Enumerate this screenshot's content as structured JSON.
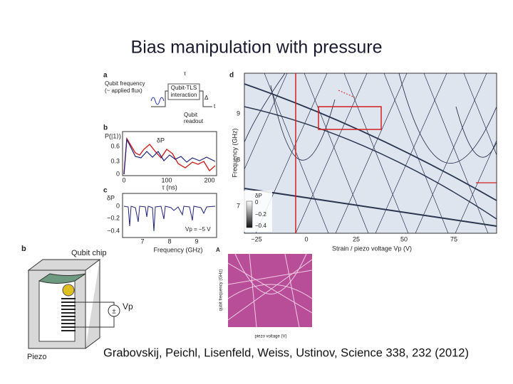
{
  "title": "Bias manipulation with pressure",
  "citation": "Grabovskij, Peichl, Lisenfeld, Weiss, Ustinov, Science 338, 232 (2012)",
  "panel_a": {
    "label": "a",
    "ylabel_1": "Qubit frequency",
    "ylabel_2": "(~ applied flux)",
    "tau": "τ",
    "box_1": "Qubit-TLS",
    "box_2": "interaction",
    "delta": "Δ",
    "t": "t",
    "readout_1": "Qubit",
    "readout_2": "readout"
  },
  "panel_b": {
    "label": "b",
    "ylabel": "P(|1⟩)",
    "yticks": [
      "0.6",
      "0.3",
      "0"
    ],
    "dp": "δP",
    "xticks": [
      "0",
      "100",
      "200"
    ],
    "xlabel": "τ (ns)"
  },
  "panel_c": {
    "label": "c",
    "ylabel": "δP",
    "yticks": [
      "0",
      "−0.2",
      "−0.4"
    ],
    "xticks": [
      "7",
      "8",
      "9"
    ],
    "xlabel": "Frequency (GHz)",
    "note": "Vp = −5 V"
  },
  "panel_d": {
    "label": "d",
    "yticks": [
      "9",
      "8",
      "7"
    ],
    "ylabel": "Frequency (GHz)",
    "xticks": [
      "−25",
      "0",
      "25",
      "50",
      "75"
    ],
    "xlabel": "Strain / piezo voltage Vp (V)",
    "cbar_title": "δP",
    "cbar_ticks": [
      "0",
      "−0.2",
      "−0.4"
    ]
  },
  "chip": {
    "label": "b",
    "chip": "Qubit chip",
    "pm": "±",
    "vp": "Vp",
    "piezo": "Piezo"
  },
  "inset": {
    "label": "A",
    "xlabel": "piezo voltage (V)",
    "ylabel": "qubit frequency (GHz)"
  }
}
